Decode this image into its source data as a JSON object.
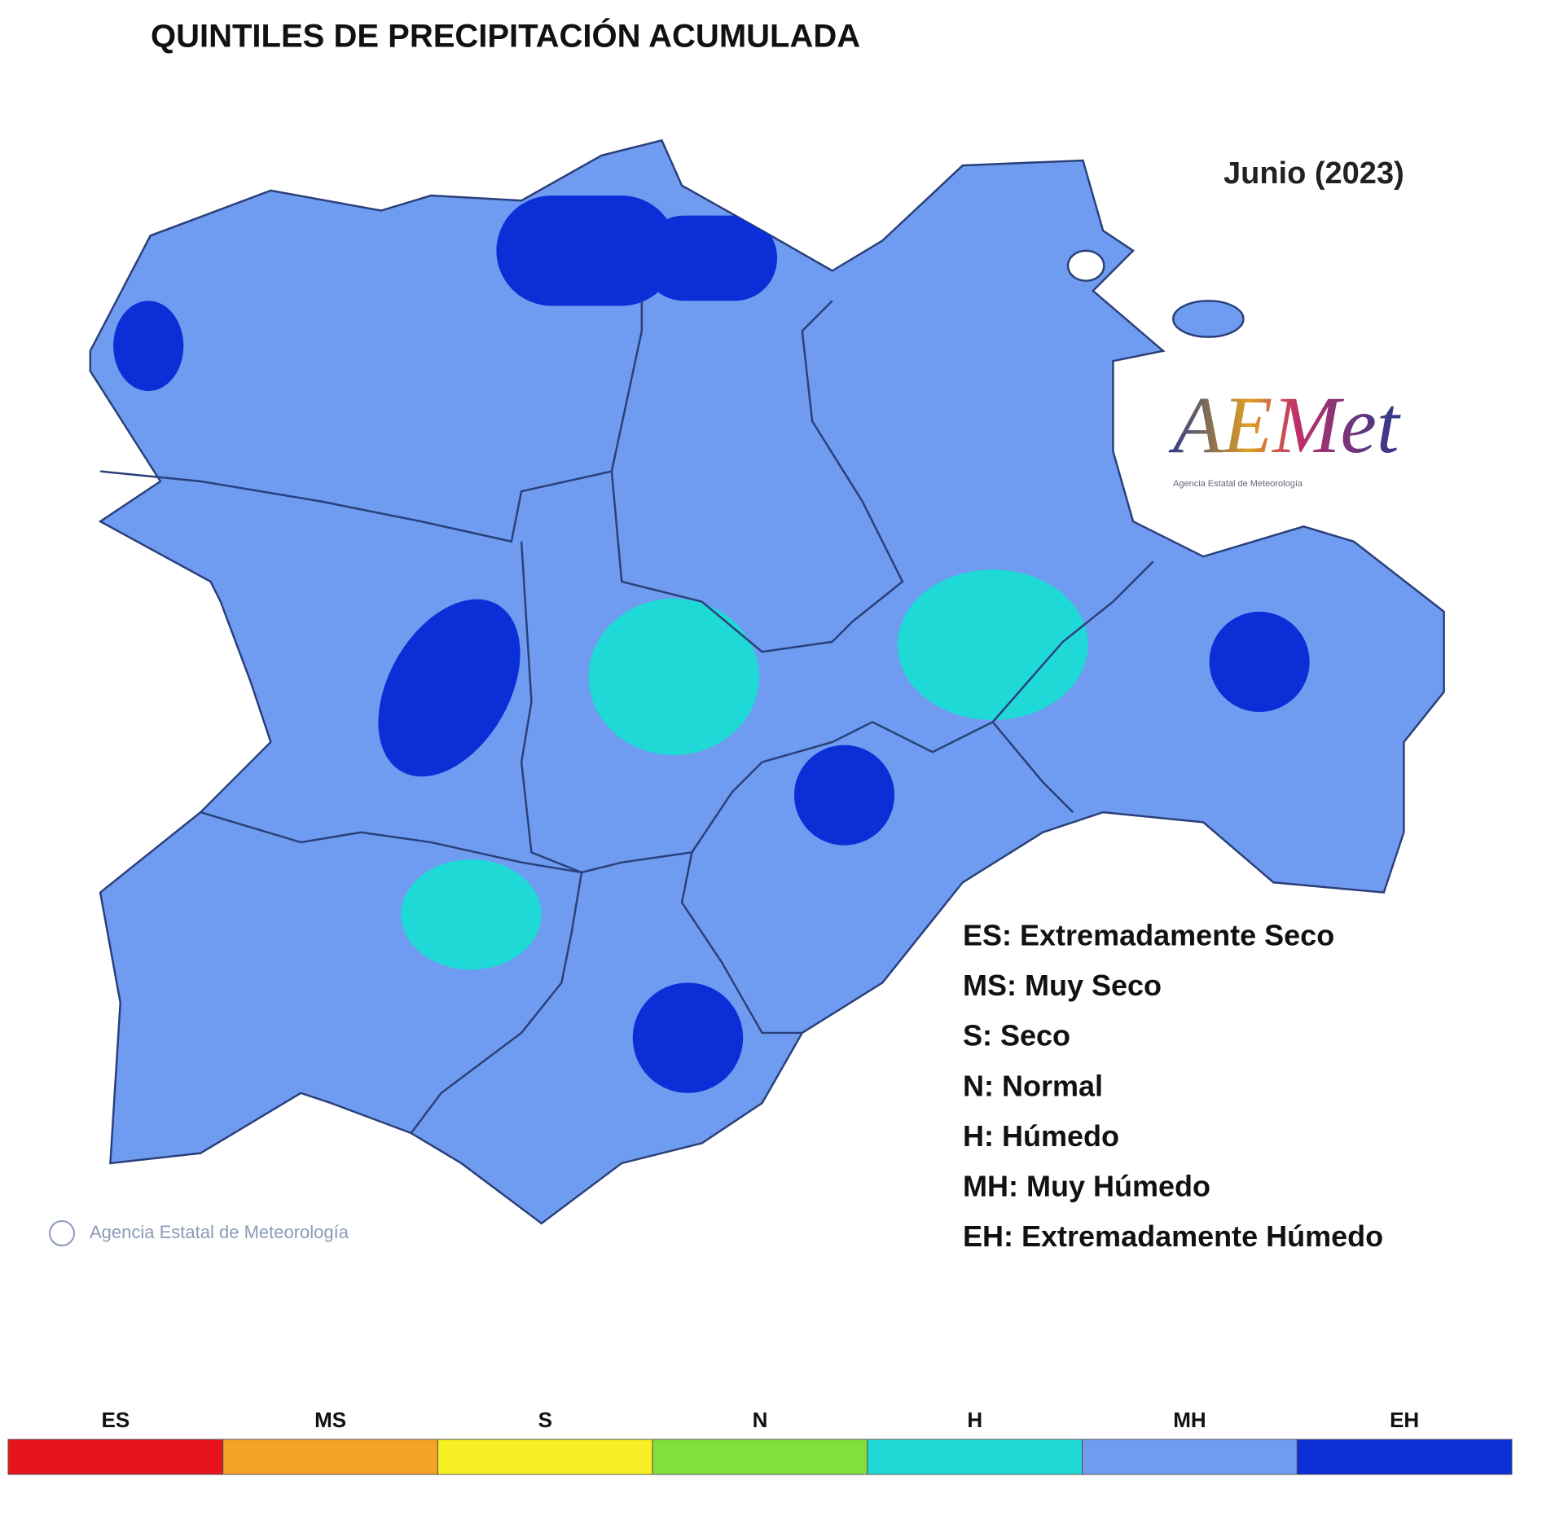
{
  "title": "QUINTILES DE PRECIPITACIÓN ACUMULADA",
  "period": "Junio (2023)",
  "logo": {
    "name": "AEMet",
    "subtitle": "Agencia Estatal de Meteorología"
  },
  "credit": "Agencia Estatal de Meteorología",
  "legend": [
    "ES: Extremadamente Seco",
    "MS: Muy Seco",
    "S: Seco",
    "N: Normal",
    "H: Húmedo",
    "MH: Muy Húmedo",
    "EH: Extremadamente Húmedo"
  ],
  "scale": [
    {
      "label": "ES",
      "color": "#e8141c"
    },
    {
      "label": "MS",
      "color": "#f5a326"
    },
    {
      "label": "S",
      "color": "#f7ef24"
    },
    {
      "label": "N",
      "color": "#82e03e"
    },
    {
      "label": "H",
      "color": "#1fd9d6"
    },
    {
      "label": "MH",
      "color": "#6f9cf1"
    },
    {
      "label": "EH",
      "color": "#0b2fd6"
    }
  ]
}
